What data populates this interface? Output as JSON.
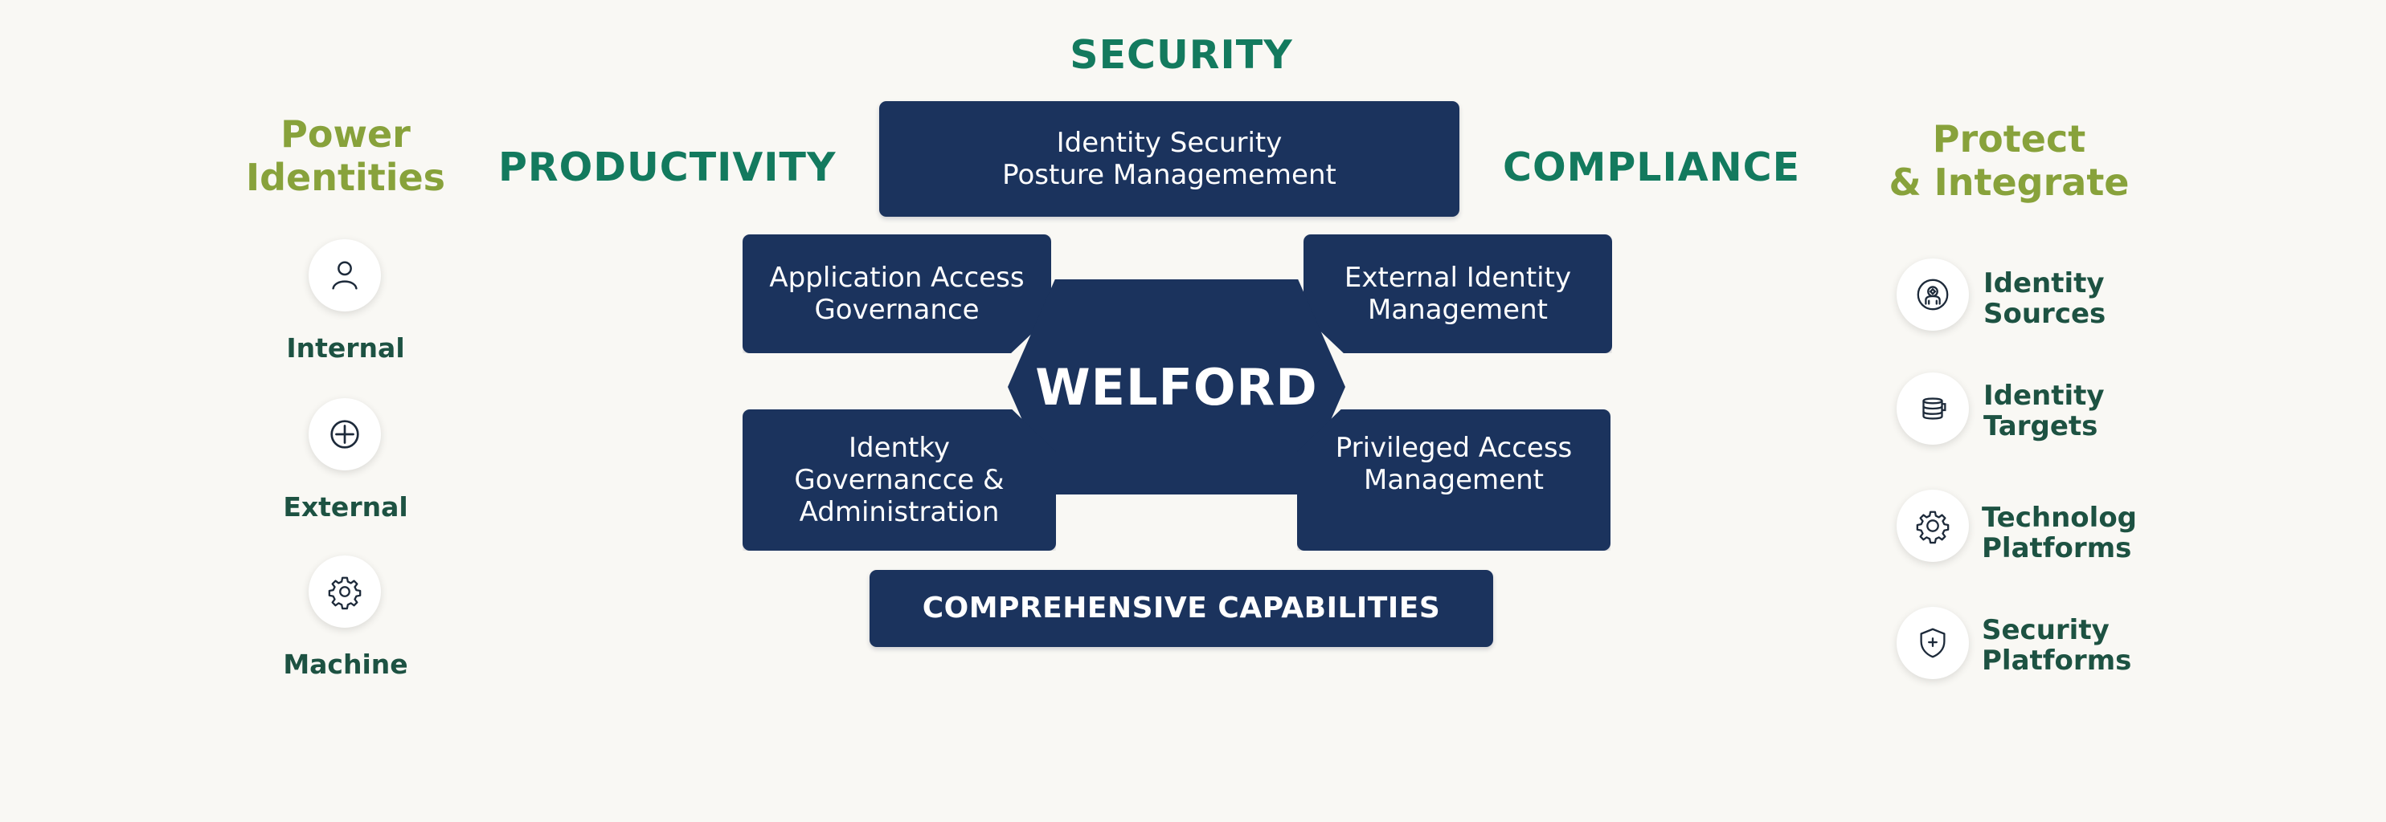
{
  "headings": {
    "security": "SECURITY",
    "productivity": "PRODUCTIVITY",
    "compliance": "COMPLIANCE"
  },
  "left": {
    "title": "Power\nIdentities",
    "items": [
      {
        "label": "Internal",
        "icon": "person-icon"
      },
      {
        "label": "External",
        "icon": "plus-circle-icon"
      },
      {
        "label": "Machine",
        "icon": "gear-icon"
      }
    ]
  },
  "right": {
    "title": "Protect\n& Integrate",
    "items": [
      {
        "label": "Identity\nSources",
        "icon": "id-source-icon"
      },
      {
        "label": "Identity\nTargets",
        "icon": "database-icon"
      },
      {
        "label": "Technolog\nPlatforms",
        "icon": "gear-icon"
      },
      {
        "label": "Security\nPlatforms",
        "icon": "shield-icon"
      }
    ]
  },
  "center": {
    "hub": "WELFORD",
    "top": "Identity Security\nPosture Managemement",
    "upper_left": "Application Access\nGovernance",
    "upper_right": "External Identity\nManagement",
    "lower_left": "Identky\nGovernancce &\nAdministration",
    "lower_right": "Privileged Access\nManagement",
    "bottom": "COMPREHENSIVE CAPABILITIES"
  },
  "colors": {
    "navy": "#1b335d",
    "teal": "#137a5e",
    "olive": "#88a23b",
    "label": "#1d5242",
    "background": "#f9f8f4"
  }
}
